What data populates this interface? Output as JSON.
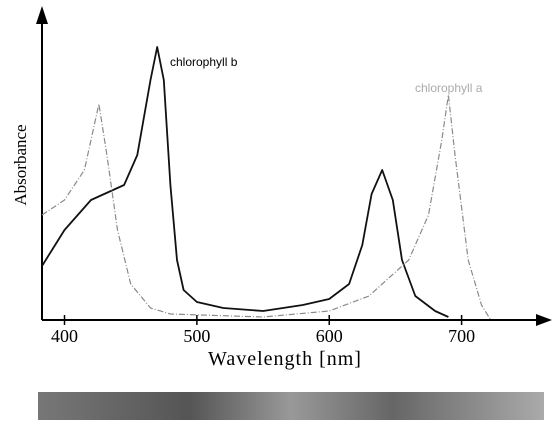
{
  "chart_data": {
    "type": "line",
    "xlabel": "Wavelength [nm]",
    "ylabel": "Absorbance",
    "xlim": [
      383,
      763
    ],
    "ylim": [
      0,
      1
    ],
    "xticks": [
      400,
      500,
      600,
      700
    ],
    "series": [
      {
        "name": "chlorophyll b",
        "color": "#111111",
        "x": [
          383,
          400,
          420,
          430,
          445,
          455,
          465,
          470,
          475,
          480,
          485,
          490,
          500,
          520,
          550,
          580,
          600,
          615,
          625,
          632,
          640,
          648,
          655,
          665,
          680,
          690
        ],
        "values": [
          0.18,
          0.3,
          0.4,
          0.42,
          0.45,
          0.55,
          0.8,
          0.91,
          0.8,
          0.45,
          0.2,
          0.1,
          0.06,
          0.04,
          0.03,
          0.05,
          0.07,
          0.12,
          0.25,
          0.42,
          0.5,
          0.4,
          0.2,
          0.08,
          0.03,
          0.01
        ]
      },
      {
        "name": "chlorophyll a",
        "color": "#8a8a8a",
        "x": [
          383,
          400,
          415,
          426,
          432,
          440,
          450,
          465,
          480,
          550,
          600,
          630,
          660,
          675,
          685,
          690,
          695,
          705,
          715,
          722
        ],
        "values": [
          0.35,
          0.4,
          0.5,
          0.72,
          0.55,
          0.3,
          0.12,
          0.04,
          0.02,
          0.01,
          0.03,
          0.08,
          0.2,
          0.35,
          0.6,
          0.75,
          0.55,
          0.2,
          0.05,
          0
        ]
      }
    ]
  }
}
